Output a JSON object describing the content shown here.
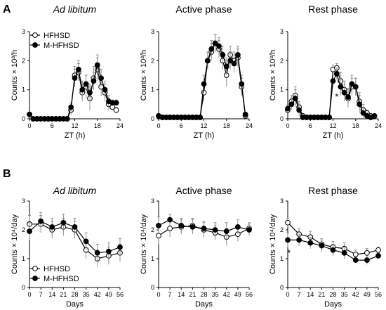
{
  "panel_letters": {
    "a": "A",
    "b": "B"
  },
  "colors": {
    "hfhsd_fill": "#ffffff",
    "mhfhsd_fill": "#000000",
    "stroke": "#000000",
    "error": "#888888"
  },
  "legend": {
    "hfhsd": "HFHSD",
    "mhfhsd": "M-HFHSD"
  },
  "chart_data": [
    {
      "type": "line",
      "title": "Ad libitum",
      "title_italic": true,
      "xlabel": "ZT (h)",
      "ylabel": "Counts × 10³/h",
      "xlim": [
        0,
        24
      ],
      "ylim": [
        0,
        3
      ],
      "x_ticks": [
        0,
        6,
        12,
        18,
        24
      ],
      "y_ticks": [
        0,
        1,
        2,
        3
      ],
      "x": [
        0,
        1,
        2,
        3,
        4,
        5,
        6,
        7,
        8,
        9,
        10,
        11,
        12,
        13,
        14,
        15,
        16,
        17,
        18,
        19,
        20,
        21,
        22,
        23
      ],
      "series": [
        {
          "name": "HFHSD",
          "values": [
            0.15,
            0,
            0,
            0,
            0,
            0,
            0,
            0,
            0,
            0,
            0,
            0.3,
            1.5,
            1.6,
            0.9,
            1.1,
            0.7,
            1.4,
            1.7,
            1.1,
            0.9,
            0.5,
            0.4,
            0.3
          ],
          "err": [
            0.05,
            0,
            0,
            0,
            0,
            0,
            0,
            0,
            0,
            0,
            0,
            0.15,
            0.3,
            0.3,
            0.3,
            0.4,
            0.4,
            0.4,
            0.4,
            0.3,
            0.3,
            0.2,
            0.1,
            0.1
          ]
        },
        {
          "name": "M-HFHSD",
          "values": [
            0.15,
            0,
            0,
            0,
            0,
            0,
            0,
            0,
            0,
            0,
            0,
            0.4,
            1.4,
            1.7,
            1.0,
            1.2,
            0.9,
            1.3,
            1.85,
            1.4,
            1.0,
            0.6,
            0.55,
            0.55
          ],
          "err": [
            0.05,
            0,
            0,
            0,
            0,
            0,
            0,
            0,
            0,
            0,
            0,
            0.15,
            0.3,
            0.3,
            0.3,
            0.3,
            0.3,
            0.3,
            0.35,
            0.3,
            0.3,
            0.2,
            0.1,
            0.1
          ]
        }
      ],
      "legend_position": "top-left",
      "annotations": []
    },
    {
      "type": "line",
      "title": "Active phase",
      "title_italic": false,
      "xlabel": "ZT (h)",
      "ylabel": "Counts × 10³/h",
      "xlim": [
        0,
        24
      ],
      "ylim": [
        0,
        3
      ],
      "x_ticks": [
        0,
        6,
        12,
        18,
        24
      ],
      "y_ticks": [
        0,
        1,
        2,
        3
      ],
      "x": [
        0,
        1,
        2,
        3,
        4,
        5,
        6,
        7,
        8,
        9,
        10,
        11,
        12,
        13,
        14,
        15,
        16,
        17,
        18,
        19,
        20,
        21,
        22,
        23
      ],
      "series": [
        {
          "name": "HFHSD",
          "values": [
            0.1,
            0.05,
            0.05,
            0.05,
            0.05,
            0.05,
            0.05,
            0.05,
            0.05,
            0.05,
            0.05,
            0.05,
            0.9,
            2.0,
            2.3,
            2.6,
            2.4,
            2.0,
            1.5,
            2.2,
            2.0,
            2.1,
            1.1,
            0.1
          ],
          "err": [
            0.05,
            0.02,
            0.02,
            0.02,
            0.02,
            0.02,
            0.02,
            0.02,
            0.02,
            0.02,
            0.02,
            0.02,
            0.3,
            0.3,
            0.3,
            0.3,
            0.3,
            0.3,
            0.4,
            0.3,
            0.3,
            0.3,
            0.3,
            0.05
          ]
        },
        {
          "name": "M-HFHSD",
          "values": [
            0.1,
            0.05,
            0.05,
            0.05,
            0.05,
            0.05,
            0.05,
            0.05,
            0.05,
            0.05,
            0.05,
            0.05,
            1.2,
            2.0,
            2.4,
            2.6,
            2.5,
            2.2,
            1.8,
            2.0,
            1.9,
            2.2,
            1.2,
            0.15
          ],
          "err": [
            0.05,
            0.02,
            0.02,
            0.02,
            0.02,
            0.02,
            0.02,
            0.02,
            0.02,
            0.02,
            0.02,
            0.02,
            0.3,
            0.3,
            0.3,
            0.3,
            0.3,
            0.3,
            0.3,
            0.3,
            0.3,
            0.3,
            0.3,
            0.05
          ]
        }
      ],
      "legend_position": "none",
      "annotations": []
    },
    {
      "type": "line",
      "title": "Rest phase",
      "title_italic": false,
      "xlabel": "ZT (h)",
      "ylabel": "Counts × 10³/h",
      "xlim": [
        0,
        24
      ],
      "ylim": [
        0,
        3
      ],
      "x_ticks": [
        0,
        6,
        12,
        18,
        24
      ],
      "y_ticks": [
        0,
        1,
        2,
        3
      ],
      "x": [
        0,
        1,
        2,
        3,
        4,
        5,
        6,
        7,
        8,
        9,
        10,
        11,
        12,
        13,
        14,
        15,
        16,
        17,
        18,
        19,
        20,
        21,
        22,
        23
      ],
      "series": [
        {
          "name": "HFHSD",
          "values": [
            0.3,
            0.6,
            0.8,
            0.4,
            0.1,
            0.05,
            0.05,
            0.05,
            0.05,
            0.05,
            0.05,
            0.05,
            1.7,
            1.75,
            1.3,
            1.0,
            0.7,
            1.1,
            1.1,
            0.6,
            0.3,
            0.2,
            0.1,
            0.1
          ],
          "err": [
            0.1,
            0.2,
            0.3,
            0.2,
            0.05,
            0.02,
            0.02,
            0.02,
            0.02,
            0.02,
            0.02,
            0.02,
            0.15,
            0.15,
            0.3,
            0.3,
            0.3,
            0.3,
            0.3,
            0.3,
            0.2,
            0.1,
            0.05,
            0.05
          ]
        },
        {
          "name": "M-HFHSD",
          "values": [
            0.35,
            0.5,
            0.7,
            0.3,
            0.05,
            0.05,
            0.05,
            0.05,
            0.05,
            0.05,
            0.05,
            0.05,
            1.3,
            1.55,
            1.1,
            0.9,
            0.75,
            1.2,
            1.1,
            0.5,
            0.2,
            0.1,
            0.05,
            0.1
          ],
          "err": [
            0.1,
            0.2,
            0.3,
            0.2,
            0.05,
            0.02,
            0.02,
            0.02,
            0.02,
            0.02,
            0.02,
            0.02,
            0.2,
            0.2,
            0.3,
            0.3,
            0.3,
            0.3,
            0.3,
            0.3,
            0.2,
            0.1,
            0.05,
            0.05
          ]
        }
      ],
      "legend_position": "none",
      "annotations": [
        {
          "text": "*",
          "x": 13,
          "y": 0.75
        }
      ]
    },
    {
      "type": "line",
      "title": "Ad libitum",
      "title_italic": true,
      "xlabel": "Days",
      "ylabel": "Counts × 10⁴/day",
      "xlim": [
        0,
        56
      ],
      "ylim": [
        0,
        3
      ],
      "x_ticks": [
        0,
        7,
        14,
        21,
        28,
        35,
        42,
        49,
        56
      ],
      "y_ticks": [
        0,
        1,
        2,
        3
      ],
      "x": [
        0,
        7,
        14,
        21,
        28,
        35,
        42,
        49,
        56
      ],
      "series": [
        {
          "name": "HFHSD",
          "values": [
            2.2,
            2.2,
            2.0,
            2.1,
            2.0,
            1.3,
            1.0,
            1.1,
            1.2
          ],
          "err": [
            0.3,
            0.3,
            0.3,
            0.3,
            0.3,
            0.3,
            0.3,
            0.3,
            0.3
          ]
        },
        {
          "name": "M-HFHSD",
          "values": [
            1.95,
            2.3,
            2.1,
            2.25,
            2.1,
            1.6,
            1.2,
            1.25,
            1.4
          ],
          "err": [
            0.3,
            0.3,
            0.3,
            0.3,
            0.3,
            0.3,
            0.3,
            0.3,
            0.3
          ]
        }
      ],
      "legend_position": "bottom-left",
      "annotations": []
    },
    {
      "type": "line",
      "title": "Active phase",
      "title_italic": false,
      "xlabel": "Days",
      "ylabel": "Counts × 10⁴/day",
      "xlim": [
        0,
        56
      ],
      "ylim": [
        0,
        3
      ],
      "x_ticks": [
        0,
        7,
        14,
        21,
        28,
        35,
        42,
        49,
        56
      ],
      "y_ticks": [
        0,
        1,
        2,
        3
      ],
      "x": [
        0,
        7,
        14,
        21,
        28,
        35,
        42,
        49,
        56
      ],
      "series": [
        {
          "name": "HFHSD",
          "values": [
            1.8,
            2.05,
            2.1,
            2.15,
            2.0,
            1.9,
            1.75,
            1.85,
            2.05
          ],
          "err": [
            0.3,
            0.3,
            0.25,
            0.25,
            0.25,
            0.25,
            0.3,
            0.25,
            0.2
          ]
        },
        {
          "name": "M-HFHSD",
          "values": [
            2.15,
            2.35,
            2.15,
            2.1,
            2.05,
            2.0,
            1.95,
            2.1,
            2.0
          ],
          "err": [
            0.3,
            0.2,
            0.25,
            0.25,
            0.25,
            0.25,
            0.3,
            0.25,
            0.2
          ]
        }
      ],
      "legend_position": "none",
      "annotations": []
    },
    {
      "type": "line",
      "title": "Rest phase",
      "title_italic": false,
      "xlabel": "Days",
      "ylabel": "Counts × 10⁴/day",
      "xlim": [
        0,
        56
      ],
      "ylim": [
        0,
        3
      ],
      "x_ticks": [
        0,
        7,
        14,
        21,
        28,
        35,
        42,
        49,
        56
      ],
      "y_ticks": [
        0,
        1,
        2,
        3
      ],
      "x": [
        0,
        7,
        14,
        21,
        28,
        35,
        42,
        49,
        56
      ],
      "series": [
        {
          "name": "HFHSD",
          "values": [
            2.25,
            1.85,
            1.75,
            1.5,
            1.4,
            1.35,
            1.15,
            1.2,
            1.3
          ],
          "err": [
            0.15,
            0.2,
            0.2,
            0.2,
            0.2,
            0.2,
            0.15,
            0.15,
            0.1
          ]
        },
        {
          "name": "M-HFHSD",
          "values": [
            1.65,
            1.65,
            1.55,
            1.45,
            1.3,
            1.2,
            0.95,
            0.95,
            1.1
          ],
          "err": [
            0.25,
            0.2,
            0.2,
            0.2,
            0.2,
            0.2,
            0.1,
            0.15,
            0.1
          ]
        }
      ],
      "legend_position": "none",
      "annotations": [
        {
          "text": "*",
          "x": 0.7,
          "y": 1.2
        }
      ]
    }
  ]
}
